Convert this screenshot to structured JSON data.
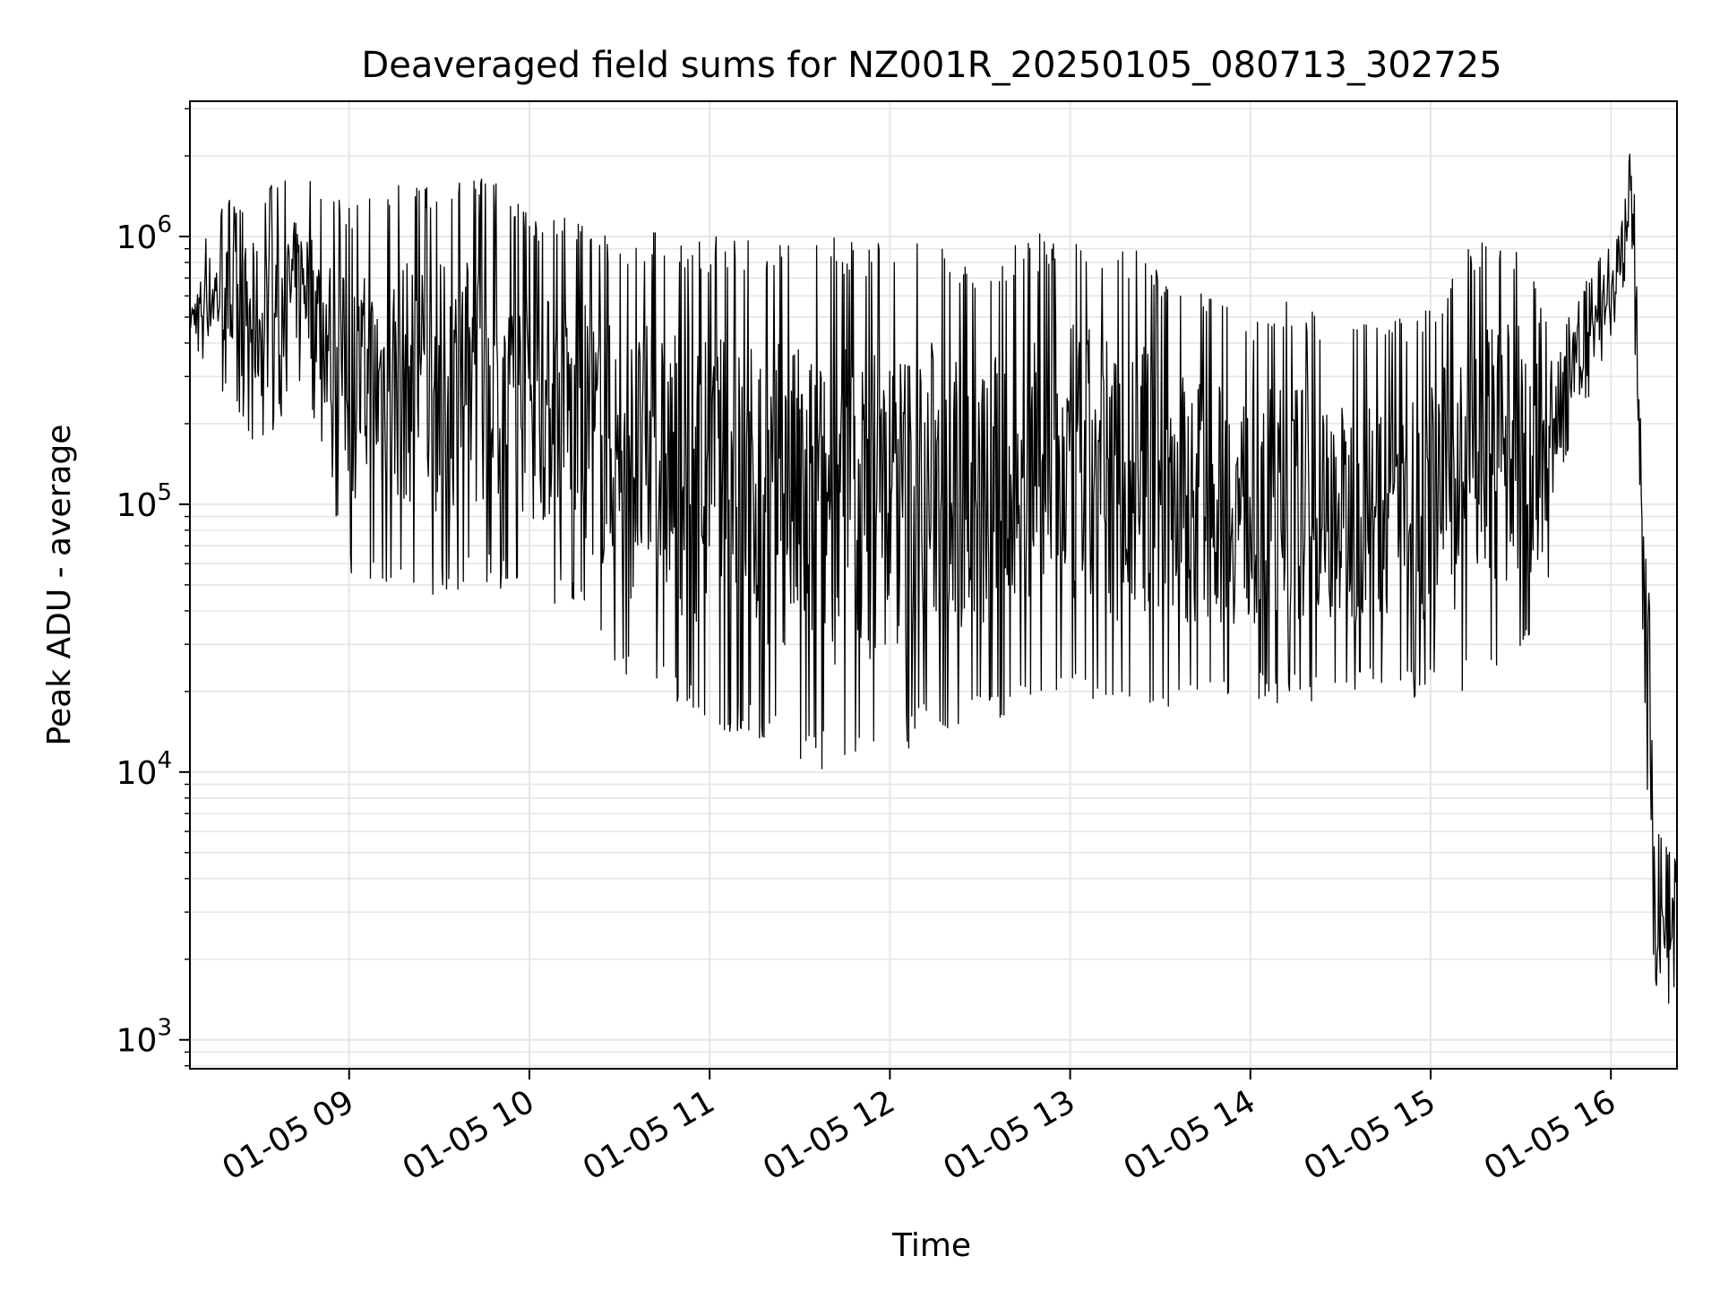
{
  "chart_data": {
    "type": "line",
    "title": "Deaveraged field sums for NZ001R_20250105_080713_302725",
    "xlabel": "Time",
    "ylabel": "Peak ADU - average",
    "y_scale": "log",
    "grid": true,
    "legend": "none",
    "line_color": "#000000",
    "grid_color": "#e6e6e6",
    "xlim": [
      "2025-01-05 08:07",
      "2025-01-05 16:22"
    ],
    "ylim": [
      780,
      3200000
    ],
    "x_ticks": [
      {
        "value": "2025-01-05 09:00",
        "label": "01-05 09"
      },
      {
        "value": "2025-01-05 10:00",
        "label": "01-05 10"
      },
      {
        "value": "2025-01-05 11:00",
        "label": "01-05 11"
      },
      {
        "value": "2025-01-05 12:00",
        "label": "01-05 12"
      },
      {
        "value": "2025-01-05 13:00",
        "label": "01-05 13"
      },
      {
        "value": "2025-01-05 14:00",
        "label": "01-05 14"
      },
      {
        "value": "2025-01-05 15:00",
        "label": "01-05 15"
      },
      {
        "value": "2025-01-05 16:00",
        "label": "01-05 16"
      }
    ],
    "y_ticks": [
      {
        "value": 1000,
        "base": "10",
        "exp": "3"
      },
      {
        "value": 10000,
        "base": "10",
        "exp": "4"
      },
      {
        "value": 100000,
        "base": "10",
        "exp": "5"
      },
      {
        "value": 1000000,
        "base": "10",
        "exp": "6"
      }
    ],
    "series": [
      {
        "envelope": [
          {
            "t": "2025-01-05 08:07",
            "low": 400000,
            "high": 600000
          },
          {
            "t": "2025-01-05 08:15",
            "low": 300000,
            "high": 1300000
          },
          {
            "t": "2025-01-05 08:30",
            "low": 150000,
            "high": 1500000
          },
          {
            "t": "2025-01-05 08:45",
            "low": 300000,
            "high": 1700000
          },
          {
            "t": "2025-01-05 09:00",
            "low": 55000,
            "high": 1300000
          },
          {
            "t": "2025-01-05 09:15",
            "low": 50000,
            "high": 1700000
          },
          {
            "t": "2025-01-05 09:30",
            "low": 45000,
            "high": 1600000
          },
          {
            "t": "2025-01-05 09:45",
            "low": 50000,
            "high": 1800000
          },
          {
            "t": "2025-01-05 10:00",
            "low": 45000,
            "high": 1200000
          },
          {
            "t": "2025-01-05 10:15",
            "low": 40000,
            "high": 1200000
          },
          {
            "t": "2025-01-05 10:30",
            "low": 21000,
            "high": 1000000
          },
          {
            "t": "2025-01-05 10:45",
            "low": 18000,
            "high": 1100000
          },
          {
            "t": "2025-01-05 11:00",
            "low": 15000,
            "high": 1000000
          },
          {
            "t": "2025-01-05 11:15",
            "low": 13000,
            "high": 1000000
          },
          {
            "t": "2025-01-05 11:30",
            "low": 10000,
            "high": 1000000
          },
          {
            "t": "2025-01-05 11:45",
            "low": 10000,
            "high": 1000000
          },
          {
            "t": "2025-01-05 12:00",
            "low": 11000,
            "high": 1000000
          },
          {
            "t": "2025-01-05 12:15",
            "low": 14000,
            "high": 1000000
          },
          {
            "t": "2025-01-05 12:30",
            "low": 15000,
            "high": 700000
          },
          {
            "t": "2025-01-05 12:45",
            "low": 16000,
            "high": 1000000
          },
          {
            "t": "2025-01-05 13:00",
            "low": 17000,
            "high": 1100000
          },
          {
            "t": "2025-01-05 13:15",
            "low": 16000,
            "high": 1000000
          },
          {
            "t": "2025-01-05 13:30",
            "low": 17000,
            "high": 800000
          },
          {
            "t": "2025-01-05 13:45",
            "low": 18000,
            "high": 600000
          },
          {
            "t": "2025-01-05 14:00",
            "low": 18000,
            "high": 500000
          },
          {
            "t": "2025-01-05 14:15",
            "low": 18000,
            "high": 600000
          },
          {
            "t": "2025-01-05 14:30",
            "low": 19000,
            "high": 450000
          },
          {
            "t": "2025-01-05 14:45",
            "low": 19000,
            "high": 500000
          },
          {
            "t": "2025-01-05 15:00",
            "low": 19000,
            "high": 550000
          },
          {
            "t": "2025-01-05 15:15",
            "low": 20000,
            "high": 1000000
          },
          {
            "t": "2025-01-05 15:30",
            "low": 25000,
            "high": 1000000
          },
          {
            "t": "2025-01-05 15:36",
            "low": 30000,
            "high": 600000
          },
          {
            "t": "2025-01-05 15:45",
            "low": 150000,
            "high": 500000
          },
          {
            "t": "2025-01-05 16:00",
            "low": 400000,
            "high": 1000000
          },
          {
            "t": "2025-01-05 16:07",
            "low": 900000,
            "high": 2200000
          },
          {
            "t": "2025-01-05 16:12",
            "low": 8000,
            "high": 200000
          },
          {
            "t": "2025-01-05 16:15",
            "low": 1100,
            "high": 6000
          },
          {
            "t": "2025-01-05 16:22",
            "low": 1500,
            "high": 5000
          }
        ]
      }
    ]
  }
}
